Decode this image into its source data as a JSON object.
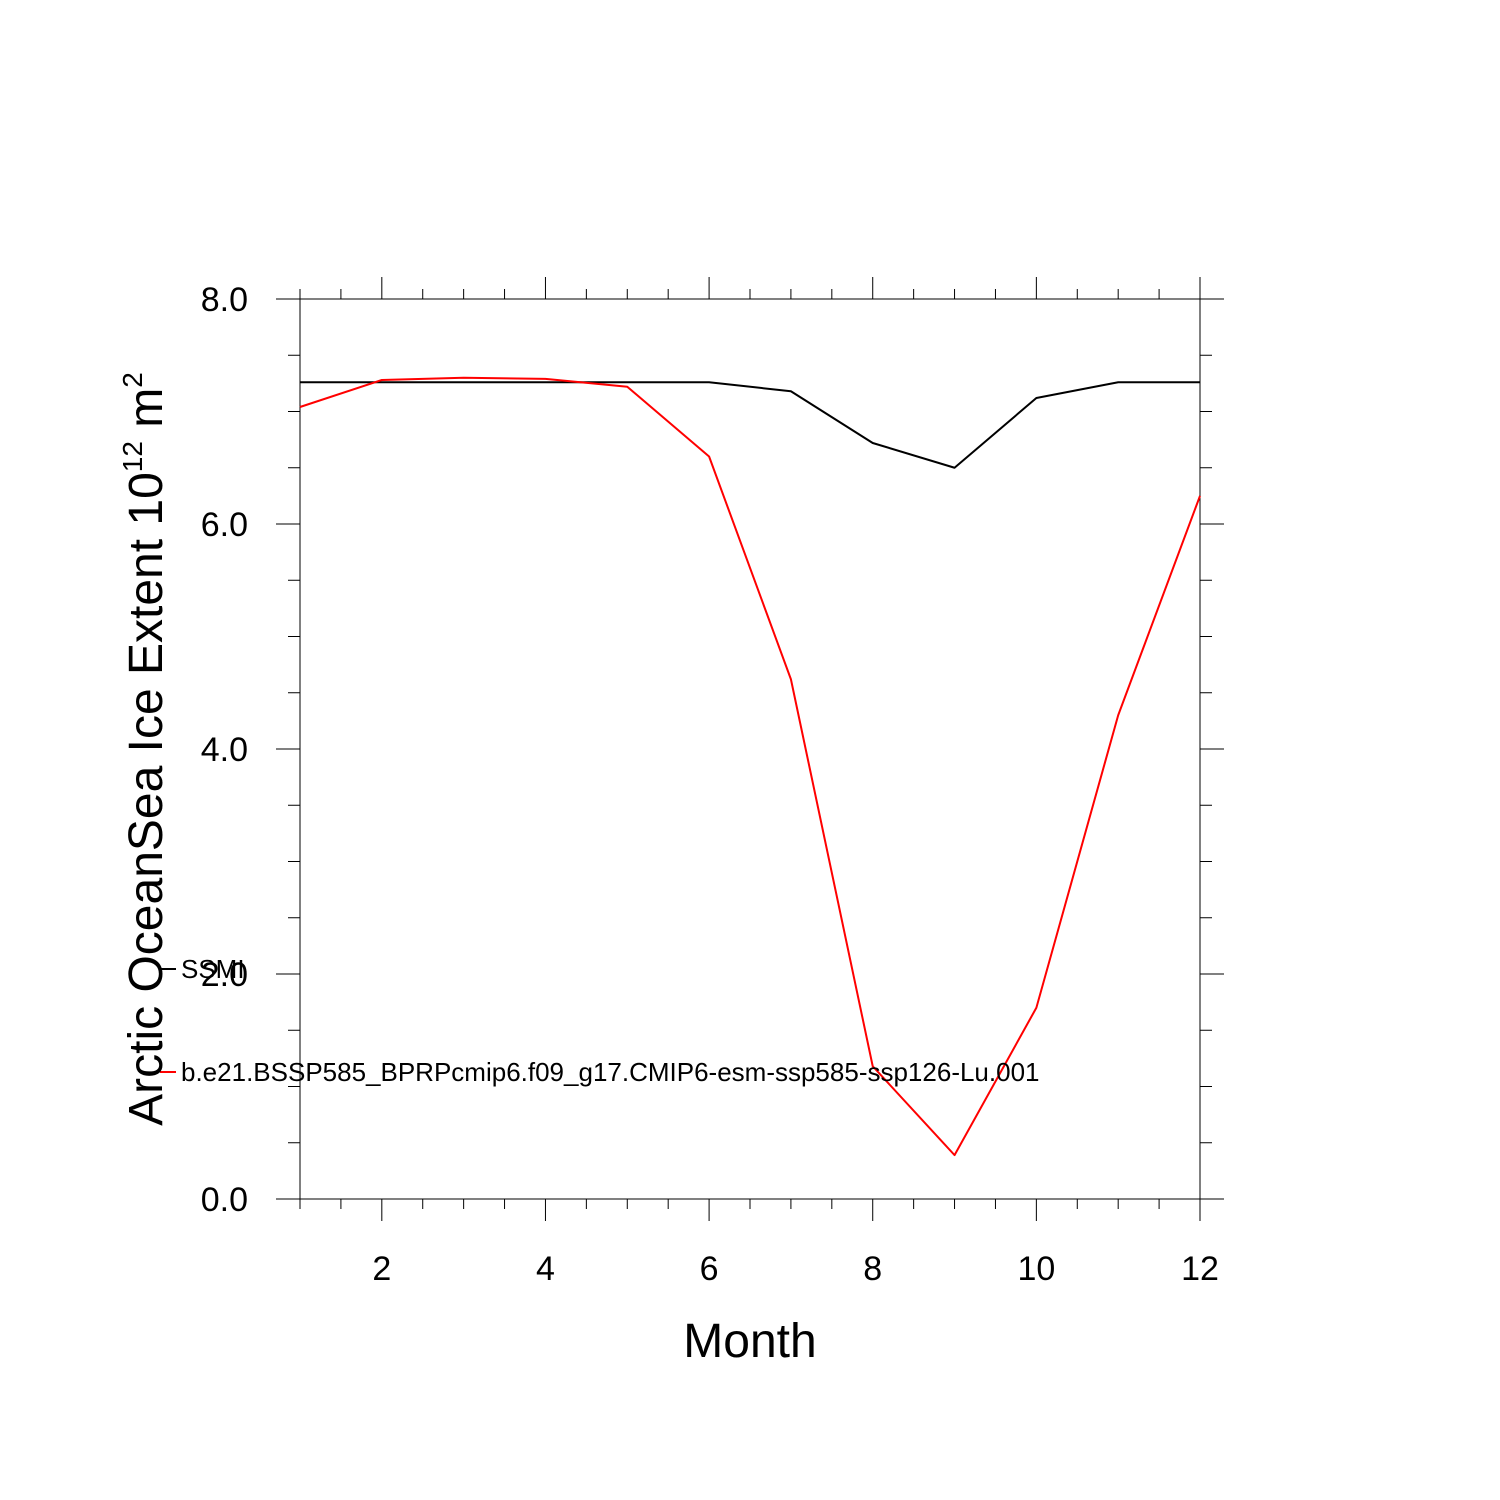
{
  "chart_data": {
    "type": "line",
    "xlabel": "Month",
    "ylabel": "Arctic OceanSea Ice Extent 10",
    "ylabel_exponent": "12",
    "ylabel_unit": " m",
    "ylabel_unit_exponent": "2",
    "xlim": [
      1,
      12
    ],
    "ylim": [
      0,
      8
    ],
    "x_ticks": [
      2,
      4,
      6,
      8,
      10,
      12
    ],
    "x_tick_labels": [
      "2",
      "4",
      "6",
      "8",
      "10",
      "12"
    ],
    "y_ticks": [
      0,
      2,
      4,
      6,
      8
    ],
    "y_tick_labels": [
      "0.0",
      "2.0",
      "4.0",
      "6.0",
      "8.0"
    ],
    "x": [
      1,
      2,
      3,
      4,
      5,
      6,
      7,
      8,
      9,
      10,
      11,
      12
    ],
    "series": [
      {
        "name": "SSMI",
        "color": "#000000",
        "values": [
          7.26,
          7.26,
          7.26,
          7.26,
          7.26,
          7.26,
          7.18,
          6.72,
          6.5,
          7.12,
          7.26,
          7.26
        ]
      },
      {
        "name": "b.e21.BSSP585_BPRPcmip6.f09_g17.CMIP6-esm-ssp585-ssp126-Lu.001",
        "color": "#ff0000",
        "values": [
          7.04,
          7.28,
          7.3,
          7.29,
          7.22,
          6.6,
          4.62,
          1.18,
          0.39,
          1.7,
          4.3,
          6.25
        ]
      }
    ],
    "grid": false,
    "legend_position": "inside-left"
  }
}
